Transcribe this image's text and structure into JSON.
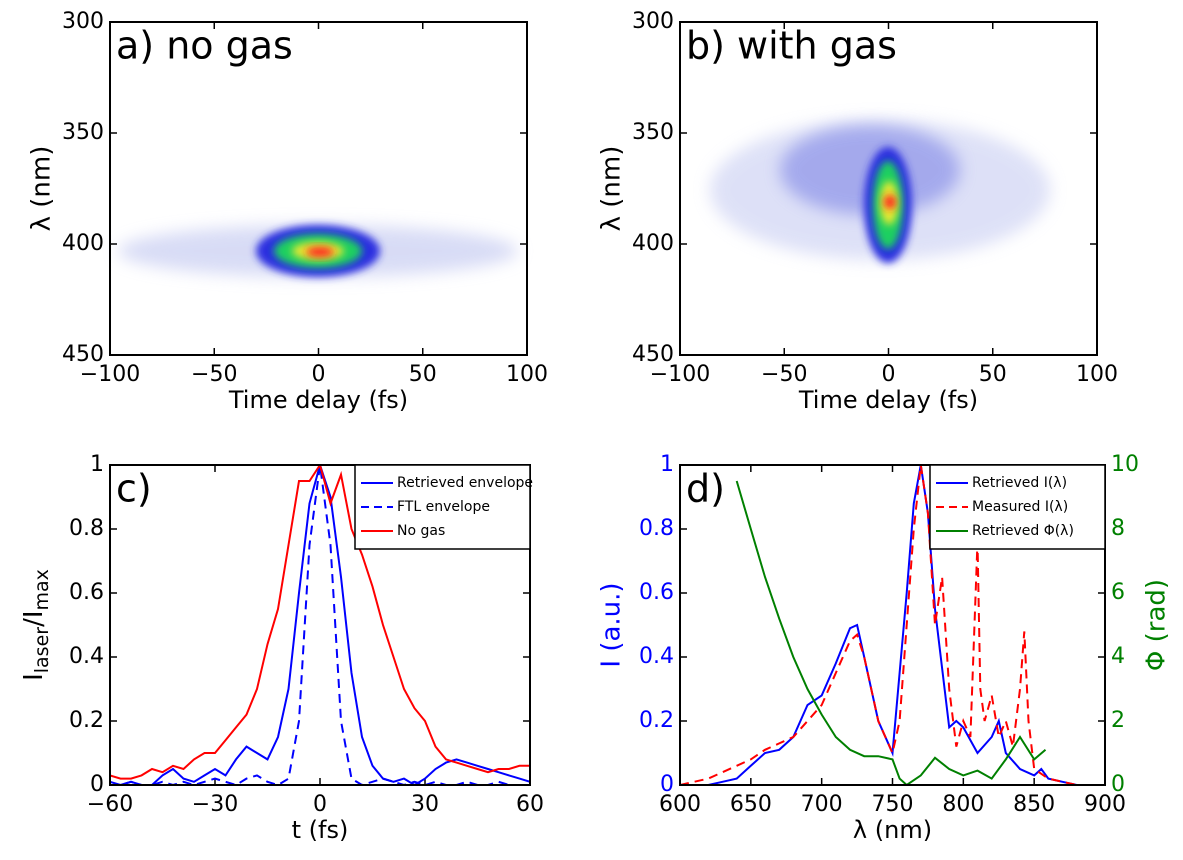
{
  "chart_data": [
    {
      "type": "heatmap",
      "panel_label": "a) no gas",
      "xlabel": "Time delay (fs)",
      "ylabel": "λ (nm)",
      "xlim": [
        -100,
        100
      ],
      "xticks": [
        {
          "value": -100,
          "label": "−100"
        },
        {
          "value": -50,
          "label": "−50"
        },
        0,
        50,
        100
      ],
      "ylim": [
        300,
        450
      ],
      "yreversed": true,
      "yticks": [
        300,
        350,
        400,
        450
      ]
    },
    {
      "type": "heatmap",
      "panel_label": "b) with gas",
      "xlabel": "Time delay (fs)",
      "ylabel": "λ (nm)",
      "xlim": [
        -100,
        100
      ],
      "xticks": [
        {
          "value": -100,
          "label": "−100"
        },
        {
          "value": -50,
          "label": "−50"
        },
        0,
        50,
        100
      ],
      "ylim": [
        300,
        450
      ],
      "yreversed": true,
      "yticks": [
        300,
        350,
        400,
        450
      ]
    },
    {
      "type": "line",
      "panel_label": "c)",
      "xlabel": "t (fs)",
      "ylabel": [
        "I",
        "laser",
        "/I",
        "max"
      ],
      "xlim": [
        -60,
        60
      ],
      "xticks": [
        {
          "value": -60,
          "label": "−60"
        },
        {
          "value": -30,
          "label": "−30"
        },
        0,
        30,
        60
      ],
      "ylim": [
        0,
        1
      ],
      "yticks": [
        0,
        0.2,
        0.4,
        0.6,
        0.8,
        1
      ],
      "legend": "upper right",
      "x": [
        -60,
        -57,
        -54,
        -51,
        -48,
        -45,
        -42,
        -39,
        -36,
        -33,
        -30,
        -27,
        -24,
        -21,
        -18,
        -15,
        -12,
        -9,
        -6,
        -3,
        0,
        3,
        6,
        9,
        12,
        15,
        18,
        21,
        24,
        27,
        30,
        33,
        36,
        39,
        42,
        45,
        48,
        51,
        54,
        57,
        60
      ],
      "series": [
        {
          "name": "Retrieved envelope",
          "color": "#0000ff",
          "dash": false,
          "values": [
            0.01,
            0.0,
            0.01,
            0.0,
            0.0,
            0.03,
            0.05,
            0.02,
            0.01,
            0.03,
            0.05,
            0.03,
            0.08,
            0.12,
            0.1,
            0.08,
            0.15,
            0.3,
            0.6,
            0.88,
            1,
            0.9,
            0.65,
            0.35,
            0.15,
            0.06,
            0.02,
            0.01,
            0.02,
            0.0,
            0.02,
            0.05,
            0.07,
            0.08,
            0.07,
            0.06,
            0.05,
            0.04,
            0.03,
            0.02,
            0.01
          ]
        },
        {
          "name": "FTL envelope",
          "color": "#0000ff",
          "dash": true,
          "values": [
            0.0,
            0.0,
            0.01,
            0.0,
            0.0,
            0.01,
            0.0,
            0.01,
            0.0,
            0.01,
            0.02,
            0.01,
            0.0,
            0.02,
            0.03,
            0.01,
            0.0,
            0.02,
            0.2,
            0.75,
            1,
            0.75,
            0.2,
            0.02,
            0.0,
            0.01,
            0.02,
            0.01,
            0.0,
            0.01,
            0.0,
            0.01,
            0.0,
            0.0,
            0.01,
            0.0,
            0.0,
            0.01,
            0.0,
            0.0,
            0.0
          ]
        },
        {
          "name": "No gas",
          "color": "#ff0000",
          "dash": false,
          "values": [
            0.03,
            0.02,
            0.02,
            0.03,
            0.05,
            0.04,
            0.06,
            0.05,
            0.08,
            0.1,
            0.1,
            0.14,
            0.18,
            0.22,
            0.3,
            0.44,
            0.55,
            0.75,
            0.95,
            0.95,
            1,
            0.88,
            0.97,
            0.8,
            0.72,
            0.62,
            0.5,
            0.4,
            0.3,
            0.24,
            0.2,
            0.12,
            0.08,
            0.07,
            0.06,
            0.05,
            0.04,
            0.05,
            0.05,
            0.06,
            0.06
          ]
        }
      ]
    },
    {
      "type": "line",
      "panel_label": "d)",
      "xlabel": "λ (nm)",
      "ylabel": "I (a.u.)",
      "y2label": "Φ (rad)",
      "ycolor": "#0000ff",
      "y2color": "#008000",
      "xlim": [
        600,
        900
      ],
      "xticks": [
        600,
        650,
        700,
        750,
        800,
        850,
        900
      ],
      "ylim": [
        0,
        1
      ],
      "yticks": [
        0,
        0.2,
        0.4,
        0.6,
        0.8,
        1
      ],
      "y2lim": [
        0,
        10
      ],
      "y2ticks": [
        0,
        2,
        4,
        6,
        8,
        10
      ],
      "legend": "upper right",
      "series": [
        {
          "name": "Retrieved I(λ)",
          "color": "#0000ff",
          "dash": false,
          "x": [
            600,
            610,
            620,
            630,
            640,
            650,
            660,
            670,
            680,
            690,
            700,
            710,
            720,
            725,
            730,
            740,
            750,
            760,
            765,
            770,
            775,
            780,
            790,
            795,
            800,
            810,
            820,
            825,
            830,
            840,
            850,
            855,
            860,
            870,
            880,
            890,
            900
          ],
          "values": [
            0,
            0,
            0,
            0.01,
            0.02,
            0.06,
            0.1,
            0.11,
            0.15,
            0.25,
            0.28,
            0.38,
            0.49,
            0.5,
            0.4,
            0.2,
            0.1,
            0.6,
            0.88,
            1,
            0.85,
            0.55,
            0.18,
            0.2,
            0.18,
            0.1,
            0.15,
            0.2,
            0.1,
            0.05,
            0.03,
            0.05,
            0.02,
            0.01,
            0,
            0,
            0
          ]
        },
        {
          "name": "Measured I(λ)",
          "color": "#ff0000",
          "dash": true,
          "x": [
            600,
            610,
            620,
            630,
            640,
            650,
            660,
            670,
            680,
            690,
            700,
            710,
            720,
            725,
            730,
            740,
            750,
            755,
            760,
            765,
            770,
            775,
            780,
            785,
            790,
            795,
            800,
            805,
            810,
            812,
            815,
            820,
            825,
            830,
            835,
            840,
            843,
            846,
            850,
            860,
            870,
            880,
            900
          ],
          "values": [
            0,
            0.01,
            0.02,
            0.04,
            0.06,
            0.08,
            0.11,
            0.13,
            0.15,
            0.2,
            0.25,
            0.35,
            0.45,
            0.47,
            0.4,
            0.2,
            0.1,
            0.2,
            0.5,
            0.8,
            1,
            0.85,
            0.5,
            0.65,
            0.3,
            0.12,
            0.2,
            0.15,
            0.76,
            0.3,
            0.2,
            0.28,
            0.15,
            0.2,
            0.12,
            0.3,
            0.48,
            0.2,
            0.05,
            0.02,
            0.01,
            0,
            0
          ]
        },
        {
          "name": "Retrieved Φ(λ)",
          "color": "#008000",
          "dash": false,
          "axis": "y2",
          "x": [
            640,
            650,
            660,
            670,
            680,
            690,
            700,
            710,
            720,
            730,
            740,
            750,
            755,
            760,
            770,
            780,
            790,
            800,
            810,
            820,
            830,
            840,
            850,
            858
          ],
          "values": [
            9.5,
            8,
            6.5,
            5.2,
            4,
            3,
            2.2,
            1.5,
            1.1,
            0.9,
            0.9,
            0.8,
            0.2,
            0,
            0.3,
            0.85,
            0.5,
            0.3,
            0.45,
            0.2,
            0.8,
            1.5,
            0.8,
            1.1
          ]
        }
      ]
    }
  ]
}
